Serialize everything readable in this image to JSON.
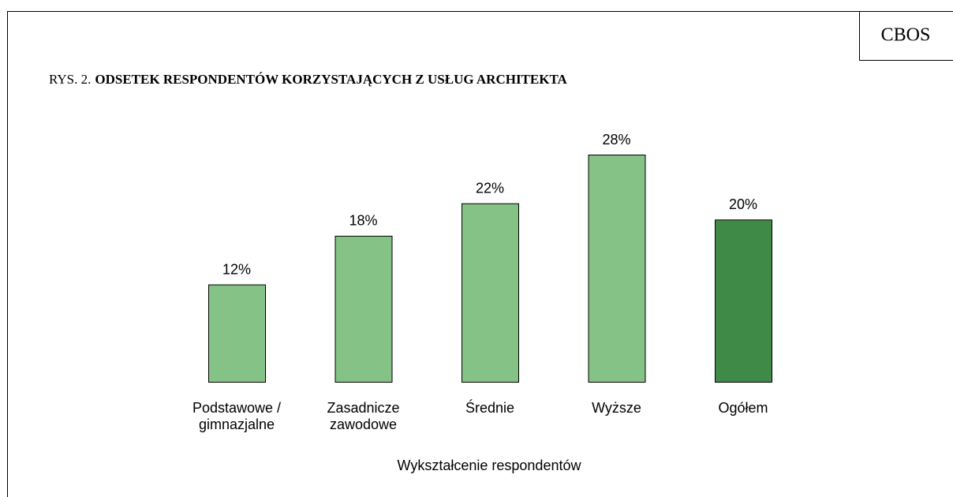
{
  "chart_data": {
    "type": "bar",
    "source": "CBOS",
    "figure_label": "RYS. 2.",
    "title": "ODSETEK RESPONDENTÓW KORZYSTAJĄCYCH Z USŁUG ARCHITEKTA",
    "x_label": "Wykształcenie respondentów",
    "categories": [
      "Podstawowe / gimnazjalne",
      "Zasadnicze zawodowe",
      "Średnie",
      "Wyższe",
      "Ogółem"
    ],
    "values": [
      12,
      18,
      22,
      28,
      20
    ],
    "value_labels": [
      "12%",
      "18%",
      "22%",
      "28%",
      "20%"
    ],
    "colors": [
      "#85c285",
      "#85c285",
      "#85c285",
      "#85c285",
      "#408a48"
    ]
  }
}
